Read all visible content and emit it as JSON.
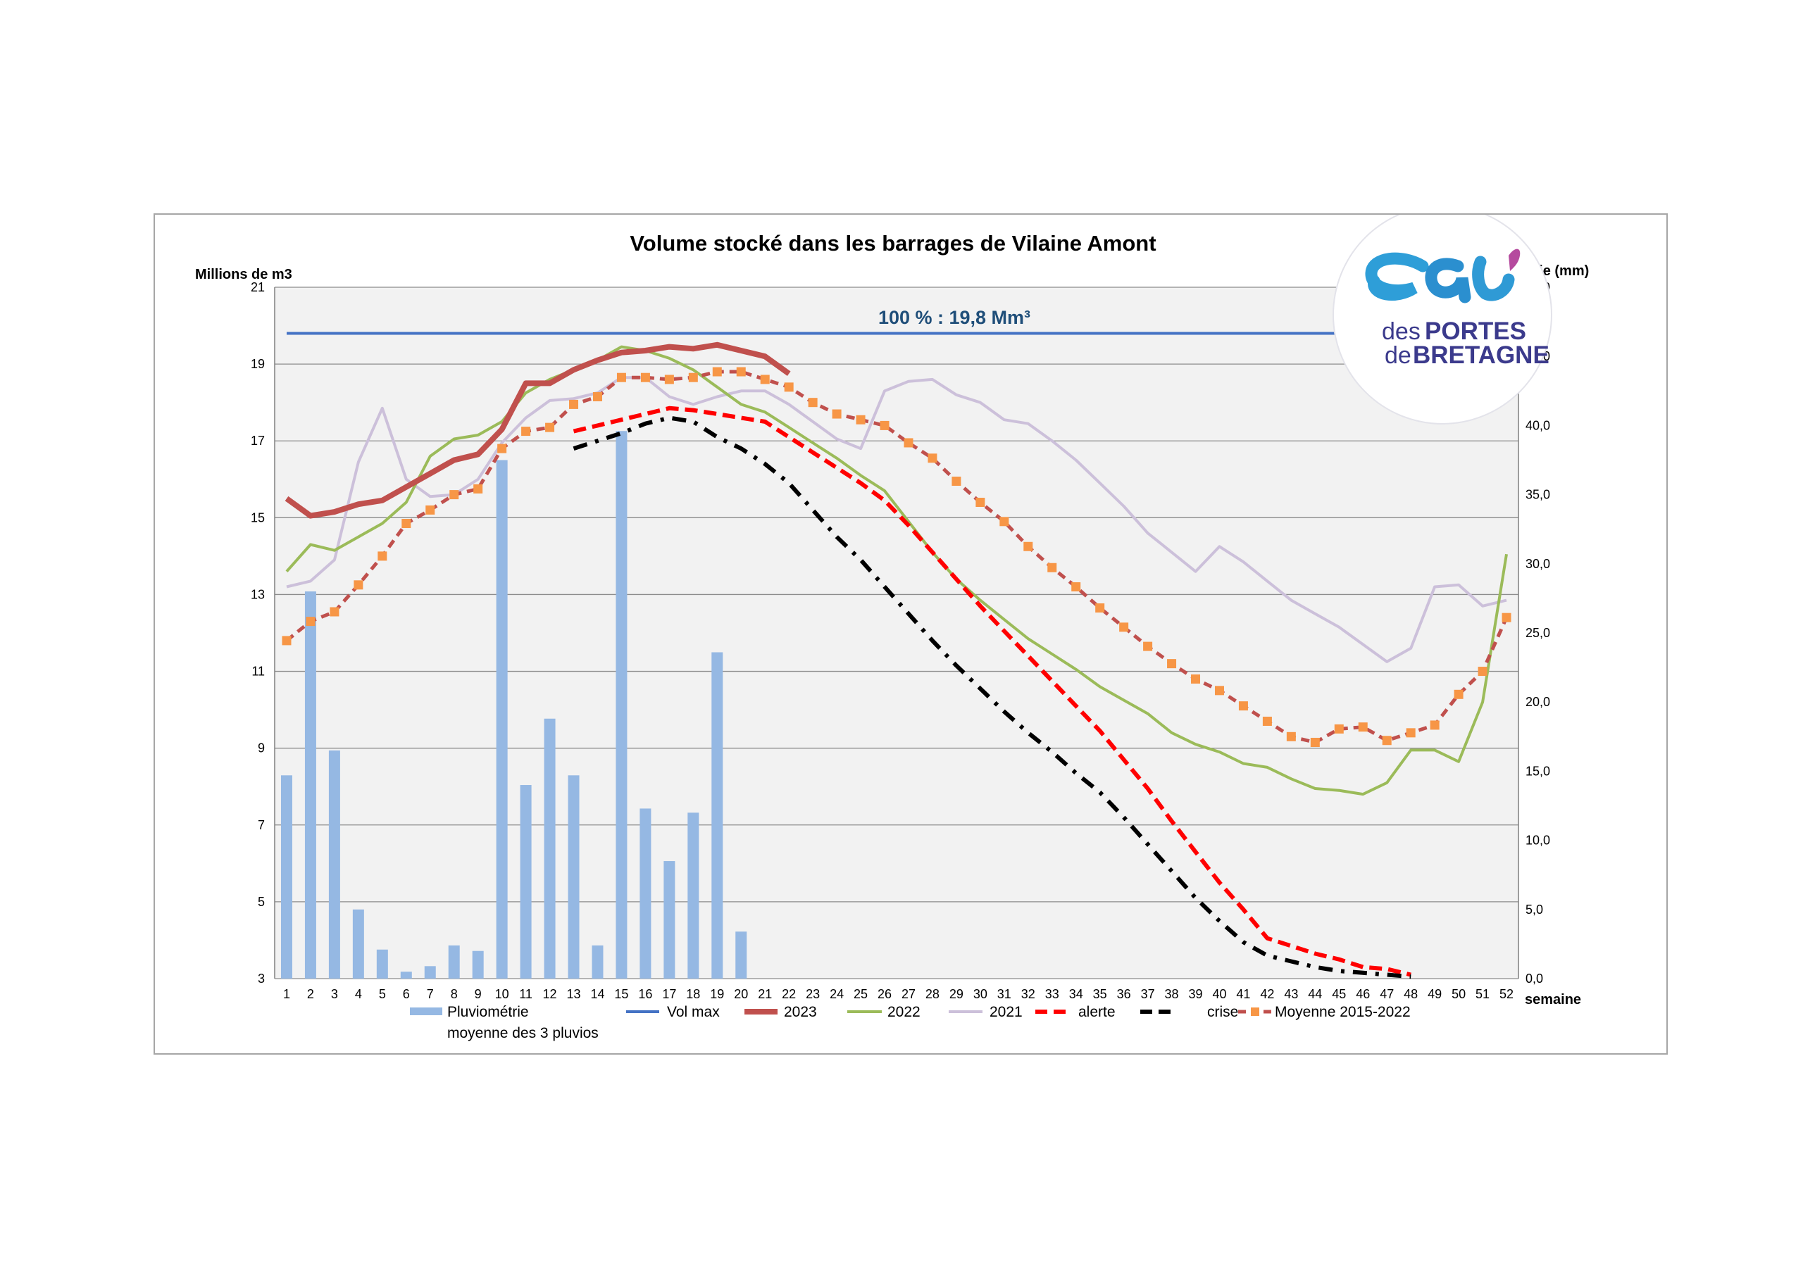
{
  "chart_data": {
    "type": "line",
    "title": "Volume stocké dans les barrages de Vilaine Amont",
    "ylabel": "Millions de m3",
    "y2label": "Pluvimétrie (mm)",
    "xlabel": "semaine",
    "ylim": [
      3,
      21
    ],
    "y2lim": [
      0,
      50
    ],
    "yticks": [
      "3",
      "5",
      "7",
      "9",
      "11",
      "13",
      "15",
      "17",
      "19",
      "21"
    ],
    "y2ticks": [
      "0,0",
      "5,0",
      "10,0",
      "15,0",
      "20,0",
      "25,0",
      "30,0",
      "35,0",
      "40,0",
      "45,0",
      "50,0"
    ],
    "x": [
      1,
      2,
      3,
      4,
      5,
      6,
      7,
      8,
      9,
      10,
      11,
      12,
      13,
      14,
      15,
      16,
      17,
      18,
      19,
      20,
      21,
      22,
      23,
      24,
      25,
      26,
      27,
      28,
      29,
      30,
      31,
      32,
      33,
      34,
      35,
      36,
      37,
      38,
      39,
      40,
      41,
      42,
      43,
      44,
      45,
      46,
      47,
      48,
      49,
      50,
      51,
      52
    ],
    "annotation": "100 % : 19,8 Mm³",
    "grid": true,
    "bars": {
      "name": "Pluviométrie\nmoyenne des 3 pluvios",
      "name_line1": "Pluviométrie",
      "name_line2": "moyenne des 3 pluvios",
      "axis": "right",
      "color": "#95b8e3",
      "values": [
        14.7,
        28.0,
        16.5,
        5.0,
        2.1,
        0.5,
        0.9,
        2.4,
        2.0,
        37.5,
        14.0,
        18.8,
        14.7,
        2.4,
        39.6,
        12.3,
        8.5,
        12.0,
        23.6,
        3.4
      ]
    },
    "series": [
      {
        "name": "Vol max",
        "color": "#4472c4",
        "style": "solid",
        "width": 4,
        "x": [
          1,
          52
        ],
        "values": [
          19.8,
          19.8
        ]
      },
      {
        "name": "2023",
        "color": "#c0504d",
        "style": "solid",
        "width": 8,
        "x": [
          1,
          2,
          3,
          4,
          5,
          6,
          7,
          8,
          9,
          10,
          11,
          12,
          13,
          14,
          15,
          16,
          17,
          18,
          19,
          20,
          21,
          22
        ],
        "values": [
          15.5,
          15.05,
          15.15,
          15.35,
          15.45,
          15.8,
          16.15,
          16.5,
          16.65,
          17.3,
          18.5,
          18.5,
          18.85,
          19.1,
          19.3,
          19.35,
          19.45,
          19.4,
          19.5,
          19.35,
          19.2,
          18.75
        ]
      },
      {
        "name": "2022",
        "color": "#9bbb59",
        "style": "solid",
        "width": 4,
        "x": [
          1,
          2,
          3,
          4,
          5,
          6,
          7,
          8,
          9,
          10,
          11,
          12,
          13,
          14,
          15,
          16,
          17,
          18,
          19,
          20,
          21,
          22,
          23,
          24,
          25,
          26,
          27,
          28,
          29,
          30,
          31,
          32,
          33,
          34,
          35,
          36,
          37,
          38,
          39,
          40,
          41,
          42,
          43,
          44,
          45,
          46,
          47,
          48,
          49,
          50,
          51,
          52
        ],
        "values": [
          13.6,
          14.3,
          14.15,
          14.5,
          14.85,
          15.4,
          16.6,
          17.05,
          17.15,
          17.5,
          18.25,
          18.6,
          18.85,
          19.1,
          19.45,
          19.35,
          19.15,
          18.85,
          18.4,
          17.95,
          17.75,
          17.35,
          16.95,
          16.55,
          16.1,
          15.7,
          14.9,
          14.1,
          13.4,
          12.85,
          12.35,
          11.85,
          11.45,
          11.05,
          10.6,
          10.25,
          9.9,
          9.4,
          9.1,
          8.9,
          8.6,
          8.5,
          8.2,
          7.95,
          7.9,
          7.8,
          8.1,
          8.95,
          8.95,
          8.65,
          10.2,
          14.05
        ]
      },
      {
        "name": "2021",
        "color": "#ccc0da",
        "style": "solid",
        "width": 4,
        "x": [
          1,
          2,
          3,
          4,
          5,
          6,
          7,
          8,
          9,
          10,
          11,
          12,
          13,
          14,
          15,
          16,
          17,
          18,
          19,
          20,
          21,
          22,
          23,
          24,
          25,
          26,
          27,
          28,
          29,
          30,
          31,
          32,
          33,
          34,
          35,
          36,
          37,
          38,
          39,
          40,
          41,
          42,
          43,
          44,
          45,
          46,
          47,
          48,
          49,
          50,
          51,
          52
        ],
        "values": [
          13.2,
          13.35,
          13.9,
          16.45,
          17.85,
          16.0,
          15.55,
          15.6,
          16.0,
          16.95,
          17.6,
          18.05,
          18.1,
          18.25,
          18.65,
          18.65,
          18.15,
          17.95,
          18.15,
          18.3,
          18.3,
          17.95,
          17.5,
          17.05,
          16.8,
          18.3,
          18.55,
          18.6,
          18.2,
          18.0,
          17.55,
          17.45,
          17.0,
          16.5,
          15.9,
          15.3,
          14.6,
          14.1,
          13.6,
          14.25,
          13.85,
          13.35,
          12.85,
          12.5,
          12.15,
          11.7,
          11.25,
          11.6,
          13.2,
          13.25,
          12.7,
          12.85
        ]
      },
      {
        "name": "alerte",
        "color": "#ff0000",
        "style": "dash",
        "width": 6,
        "x": [
          13,
          14,
          15,
          16,
          17,
          18,
          19,
          20,
          21,
          22,
          23,
          24,
          25,
          26,
          27,
          28,
          29,
          30,
          31,
          32,
          33,
          34,
          35,
          36,
          37,
          38,
          39,
          40,
          41,
          42,
          43,
          44,
          45,
          46,
          47,
          48
        ],
        "values": [
          17.25,
          17.4,
          17.55,
          17.7,
          17.85,
          17.8,
          17.7,
          17.6,
          17.5,
          17.1,
          16.7,
          16.3,
          15.9,
          15.45,
          14.8,
          14.1,
          13.4,
          12.7,
          12.05,
          11.4,
          10.75,
          10.1,
          9.45,
          8.7,
          7.95,
          7.1,
          6.3,
          5.5,
          4.8,
          4.05,
          3.85,
          3.65,
          3.5,
          3.3,
          3.25,
          3.1
        ]
      },
      {
        "name": "crise",
        "color": "#000000",
        "style": "dashdot",
        "width": 6,
        "x": [
          13,
          14,
          15,
          16,
          17,
          18,
          19,
          20,
          21,
          22,
          23,
          24,
          25,
          26,
          27,
          28,
          29,
          30,
          31,
          32,
          33,
          34,
          35,
          36,
          37,
          38,
          39,
          40,
          41,
          42,
          43,
          44,
          45,
          46,
          47,
          48
        ],
        "values": [
          16.8,
          17.0,
          17.2,
          17.45,
          17.6,
          17.5,
          17.1,
          16.8,
          16.4,
          15.9,
          15.2,
          14.5,
          13.9,
          13.2,
          12.5,
          11.8,
          11.15,
          10.55,
          9.95,
          9.4,
          8.9,
          8.35,
          7.85,
          7.2,
          6.5,
          5.8,
          5.1,
          4.5,
          3.95,
          3.6,
          3.45,
          3.3,
          3.2,
          3.15,
          3.1,
          3.05
        ]
      },
      {
        "name": "Moyenne 2015-2022",
        "color": "#c0504d",
        "marker_color": "#f79646",
        "style": "dash-marker",
        "width": 5,
        "x": [
          1,
          2,
          3,
          4,
          5,
          6,
          7,
          8,
          9,
          10,
          11,
          12,
          13,
          14,
          15,
          16,
          17,
          18,
          19,
          20,
          21,
          22,
          23,
          24,
          25,
          26,
          27,
          28,
          29,
          30,
          31,
          32,
          33,
          34,
          35,
          36,
          37,
          38,
          39,
          40,
          41,
          42,
          43,
          44,
          45,
          46,
          47,
          48,
          49,
          50,
          51,
          52
        ],
        "values": [
          11.8,
          12.3,
          12.55,
          13.25,
          14.0,
          14.85,
          15.2,
          15.6,
          15.75,
          16.8,
          17.25,
          17.35,
          17.95,
          18.15,
          18.65,
          18.65,
          18.6,
          18.65,
          18.8,
          18.8,
          18.6,
          18.4,
          18.0,
          17.7,
          17.55,
          17.4,
          16.95,
          16.55,
          15.95,
          15.4,
          14.9,
          14.25,
          13.7,
          13.2,
          12.65,
          12.15,
          11.65,
          11.2,
          10.8,
          10.5,
          10.1,
          9.7,
          9.3,
          9.15,
          9.5,
          9.55,
          9.2,
          9.4,
          9.6,
          10.4,
          11.0,
          12.4
        ]
      }
    ]
  },
  "logo": {
    "line1": "des",
    "line2": "PORTES",
    "line3": "de",
    "line4": "BRETAGNE"
  }
}
